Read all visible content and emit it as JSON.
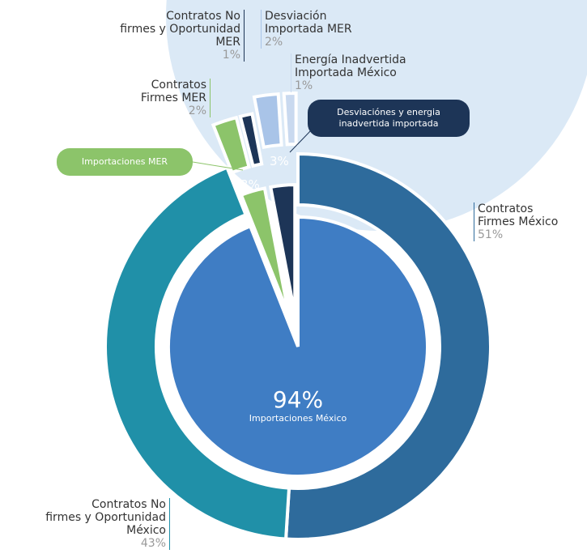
{
  "chart_data": [
    {
      "type": "pie",
      "categories": [
        "Importaciones México",
        "Importaciones MER",
        "Desviaciónes y energia inadvertida importada"
      ],
      "values": [
        94,
        3,
        3
      ],
      "value_labels": [
        "94%",
        "3%",
        "3%"
      ],
      "colors": [
        "#3f7dc4",
        "#8cc46a",
        "#1d3557"
      ]
    },
    {
      "type": "donut",
      "categories": [
        "Contratos\nFirmes México",
        "Contratos No\nfirmes y Oportunidad\nMéxico",
        "Contratos\nFirmes MER",
        "Contratos No\nfirmes y Oportunidad\nMER",
        "Desviación\nImportada MER",
        "Energía Inadvertida\nImportada México"
      ],
      "values": [
        51,
        43,
        2,
        1,
        2,
        1
      ],
      "value_labels": [
        "51%",
        "43%",
        "2%",
        "1%",
        "2%",
        "1%"
      ],
      "colors": [
        "#2e6b9c",
        "#2090a8",
        "#8cc46a",
        "#1d3557",
        "#a9c4e8",
        "#c9d9ef"
      ]
    }
  ]
}
